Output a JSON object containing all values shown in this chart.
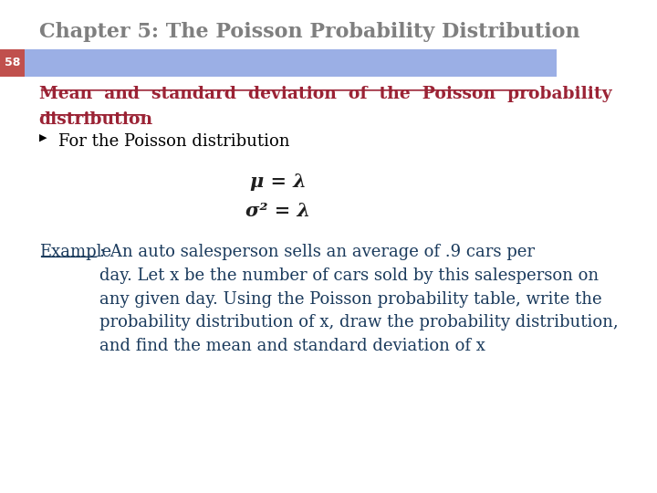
{
  "title": "Chapter 5: The Poisson Probability Distribution",
  "title_color": "#7f7f7f",
  "title_fontsize": 16,
  "slide_number": "58",
  "slide_number_bg": "#c0504d",
  "slide_number_color": "#ffffff",
  "header_bar_color": "#9bafe5",
  "heading_line1": "Mean  and  standard  deviation  of  the  Poisson  probability",
  "heading_line2": "distribution",
  "heading_color": "#9b2335",
  "heading_fontsize": 13.5,
  "bullet_text": "For the Poisson distribution",
  "bullet_color": "#000000",
  "bullet_fontsize": 13,
  "formula1": "μ = λ",
  "formula2": "σ² = λ",
  "formula_fontsize": 15,
  "formula_color": "#1f1f1f",
  "example_label": "Example",
  "example_color": "#1a3a5c",
  "example_fontsize": 13,
  "example_body": ": An auto salesperson sells an average of .9 cars per\nday. Let x be the number of cars sold by this salesperson on\nany given day. Using the Poisson probability table, write the\nprobability distribution of x, draw the probability distribution,\nand find the mean and standard deviation of x",
  "background_color": "#ffffff"
}
